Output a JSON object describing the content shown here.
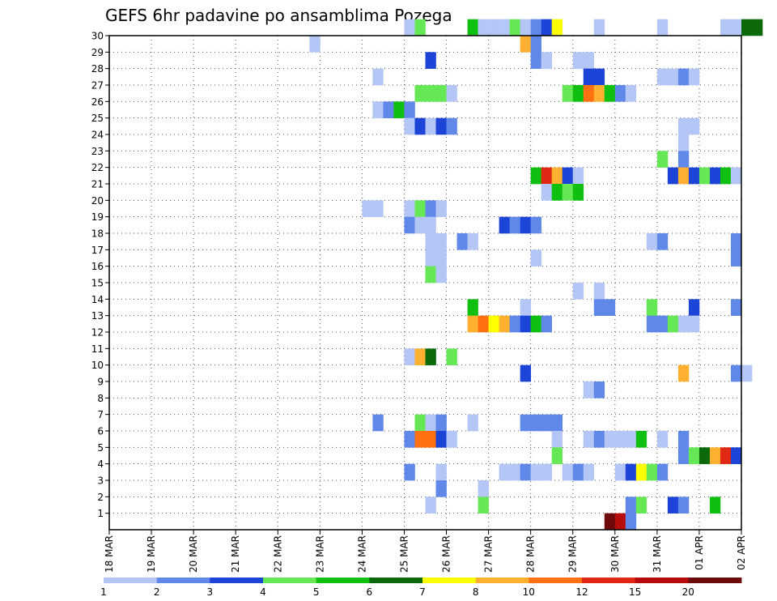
{
  "chart_data": {
    "type": "heatmap",
    "title": "GEFS 6hr padavine po ansamblima Pozega",
    "xlabel": "",
    "ylabel": "",
    "x_tick_labels": [
      "18 MAR",
      "19 MAR",
      "20 MAR",
      "21 MAR",
      "22 MAR",
      "23 MAR",
      "24 MAR",
      "25 MAR",
      "26 MAR",
      "27 MAR",
      "28 MAR",
      "29 MAR",
      "30 MAR",
      "31 MAR",
      "01 APR",
      "02 APR"
    ],
    "y_tick_labels": [
      "1",
      "2",
      "3",
      "4",
      "5",
      "6",
      "7",
      "8",
      "9",
      "10",
      "11",
      "12",
      "13",
      "14",
      "15",
      "16",
      "17",
      "18",
      "19",
      "20",
      "21",
      "22",
      "23",
      "24",
      "25",
      "26",
      "27",
      "28",
      "29",
      "30"
    ],
    "x_range": [
      "18 MAR 00Z",
      "02 APR 00Z"
    ],
    "y_range": [
      0,
      30
    ],
    "x_step_hours": 6,
    "grid": true,
    "legend_position": "bottom",
    "legend_levels": [
      "1",
      "2",
      "3",
      "4",
      "5",
      "6",
      "7",
      "8",
      "10",
      "12",
      "15",
      "20"
    ],
    "legend_colors": [
      "#b3c6f5",
      "#6088e8",
      "#1c44d6",
      "#66e856",
      "#10c010",
      "#0b680b",
      "#ffff00",
      "#ffb030",
      "#ff7010",
      "#e02814",
      "#b80c0c",
      "#6e0a0a"
    ],
    "cells": [
      {
        "member": 30,
        "t": [
          [
            28,
            1
          ],
          [
            29,
            4
          ],
          [
            34,
            5
          ],
          [
            35,
            1
          ],
          [
            36,
            1
          ],
          [
            37,
            1
          ],
          [
            38,
            4
          ],
          [
            39,
            1
          ],
          [
            40,
            2
          ],
          [
            41,
            3
          ],
          [
            42,
            7
          ],
          [
            46,
            1
          ],
          [
            52,
            1
          ],
          [
            58,
            1
          ],
          [
            59,
            1
          ],
          [
            60,
            6
          ],
          [
            61,
            6
          ]
        ]
      },
      {
        "member": 29,
        "t": [
          [
            19,
            1
          ],
          [
            39,
            8
          ],
          [
            40,
            2
          ]
        ]
      },
      {
        "member": 28,
        "t": [
          [
            30,
            3
          ],
          [
            40,
            2
          ],
          [
            41,
            1
          ],
          [
            44,
            1
          ],
          [
            45,
            1
          ]
        ]
      },
      {
        "member": 27,
        "t": [
          [
            25,
            1
          ],
          [
            45,
            3
          ],
          [
            46,
            3
          ],
          [
            52,
            1
          ],
          [
            53,
            1
          ],
          [
            54,
            2
          ],
          [
            55,
            1
          ]
        ]
      },
      {
        "member": 26,
        "t": [
          [
            29,
            4
          ],
          [
            30,
            4
          ],
          [
            31,
            4
          ],
          [
            32,
            1
          ],
          [
            43,
            4
          ],
          [
            44,
            5
          ],
          [
            45,
            9
          ],
          [
            46,
            8
          ],
          [
            47,
            5
          ],
          [
            48,
            2
          ],
          [
            49,
            1
          ]
        ]
      },
      {
        "member": 25,
        "t": [
          [
            25,
            1
          ],
          [
            26,
            2
          ],
          [
            27,
            5
          ],
          [
            28,
            2
          ]
        ]
      },
      {
        "member": 24,
        "t": [
          [
            28,
            1
          ],
          [
            29,
            3
          ],
          [
            30,
            1
          ],
          [
            31,
            3
          ],
          [
            32,
            2
          ],
          [
            54,
            1
          ],
          [
            55,
            1
          ]
        ]
      },
      {
        "member": 23,
        "t": [
          [
            54,
            1
          ]
        ]
      },
      {
        "member": 22,
        "t": [
          [
            52,
            4
          ],
          [
            54,
            2
          ]
        ]
      },
      {
        "member": 21,
        "t": [
          [
            40,
            5
          ],
          [
            41,
            10
          ],
          [
            42,
            8
          ],
          [
            43,
            3
          ],
          [
            44,
            1
          ],
          [
            53,
            3
          ],
          [
            54,
            8
          ],
          [
            55,
            3
          ],
          [
            56,
            4
          ],
          [
            57,
            3
          ],
          [
            58,
            5
          ],
          [
            59,
            1
          ]
        ]
      },
      {
        "member": 20,
        "t": [
          [
            41,
            1
          ],
          [
            42,
            5
          ],
          [
            43,
            4
          ],
          [
            44,
            5
          ]
        ]
      },
      {
        "member": 19,
        "t": [
          [
            24,
            1
          ],
          [
            25,
            1
          ],
          [
            28,
            1
          ],
          [
            29,
            4
          ],
          [
            30,
            2
          ],
          [
            31,
            1
          ]
        ]
      },
      {
        "member": 18,
        "t": [
          [
            28,
            2
          ],
          [
            29,
            1
          ],
          [
            30,
            1
          ],
          [
            37,
            3
          ],
          [
            38,
            2
          ],
          [
            39,
            3
          ],
          [
            40,
            2
          ]
        ]
      },
      {
        "member": 17,
        "t": [
          [
            30,
            1
          ],
          [
            31,
            1
          ],
          [
            33,
            2
          ],
          [
            34,
            1
          ],
          [
            51,
            1
          ],
          [
            52,
            2
          ],
          [
            59,
            2
          ]
        ]
      },
      {
        "member": 16,
        "t": [
          [
            30,
            1
          ],
          [
            31,
            1
          ],
          [
            40,
            1
          ],
          [
            59,
            2
          ]
        ]
      },
      {
        "member": 15,
        "t": [
          [
            30,
            4
          ],
          [
            31,
            1
          ]
        ]
      },
      {
        "member": 14,
        "t": [
          [
            44,
            1
          ],
          [
            46,
            1
          ]
        ]
      },
      {
        "member": 13,
        "t": [
          [
            34,
            5
          ],
          [
            39,
            1
          ],
          [
            46,
            2
          ],
          [
            47,
            2
          ],
          [
            51,
            4
          ],
          [
            55,
            3
          ],
          [
            59,
            2
          ]
        ]
      },
      {
        "member": 12,
        "t": [
          [
            34,
            8
          ],
          [
            35,
            9
          ],
          [
            36,
            7
          ],
          [
            37,
            8
          ],
          [
            38,
            2
          ],
          [
            39,
            3
          ],
          [
            40,
            5
          ],
          [
            41,
            2
          ],
          [
            51,
            2
          ],
          [
            52,
            2
          ],
          [
            53,
            4
          ],
          [
            54,
            1
          ],
          [
            55,
            1
          ]
        ]
      },
      {
        "member": 10,
        "t": [
          [
            28,
            1
          ],
          [
            29,
            8
          ],
          [
            30,
            6
          ],
          [
            32,
            4
          ]
        ]
      },
      {
        "member": 9,
        "t": [
          [
            39,
            3
          ],
          [
            54,
            8
          ],
          [
            59,
            2
          ],
          [
            60,
            1
          ]
        ]
      },
      {
        "member": 8,
        "t": [
          [
            45,
            1
          ],
          [
            46,
            2
          ]
        ]
      },
      {
        "member": 6,
        "t": [
          [
            25,
            2
          ],
          [
            29,
            4
          ],
          [
            30,
            1
          ],
          [
            31,
            2
          ],
          [
            34,
            1
          ],
          [
            39,
            2
          ],
          [
            40,
            2
          ],
          [
            41,
            2
          ],
          [
            42,
            2
          ]
        ]
      },
      {
        "member": 5,
        "t": [
          [
            28,
            2
          ],
          [
            29,
            9
          ],
          [
            30,
            9
          ],
          [
            31,
            3
          ],
          [
            32,
            1
          ],
          [
            42,
            1
          ],
          [
            45,
            1
          ],
          [
            46,
            2
          ],
          [
            47,
            1
          ],
          [
            48,
            1
          ],
          [
            49,
            1
          ],
          [
            50,
            5
          ],
          [
            52,
            1
          ],
          [
            54,
            2
          ]
        ]
      },
      {
        "member": 4,
        "t": [
          [
            42,
            4
          ],
          [
            54,
            2
          ],
          [
            55,
            4
          ],
          [
            56,
            6
          ],
          [
            57,
            8
          ],
          [
            58,
            10
          ],
          [
            59,
            3
          ]
        ]
      },
      {
        "member": 3,
        "t": [
          [
            28,
            2
          ],
          [
            31,
            1
          ],
          [
            37,
            1
          ],
          [
            38,
            1
          ],
          [
            39,
            2
          ],
          [
            40,
            1
          ],
          [
            41,
            1
          ],
          [
            43,
            1
          ],
          [
            44,
            2
          ],
          [
            45,
            1
          ],
          [
            48,
            1
          ],
          [
            49,
            3
          ],
          [
            50,
            7
          ],
          [
            51,
            4
          ],
          [
            52,
            2
          ]
        ]
      },
      {
        "member": 2,
        "t": [
          [
            31,
            2
          ],
          [
            35,
            1
          ]
        ]
      },
      {
        "member": 1,
        "t": [
          [
            30,
            1
          ],
          [
            35,
            4
          ],
          [
            49,
            2
          ],
          [
            50,
            4
          ],
          [
            53,
            3
          ],
          [
            54,
            2
          ],
          [
            57,
            5
          ]
        ]
      },
      {
        "member": 0,
        "t": [
          [
            47,
            12
          ],
          [
            48,
            11
          ],
          [
            49,
            2
          ]
        ]
      }
    ]
  }
}
